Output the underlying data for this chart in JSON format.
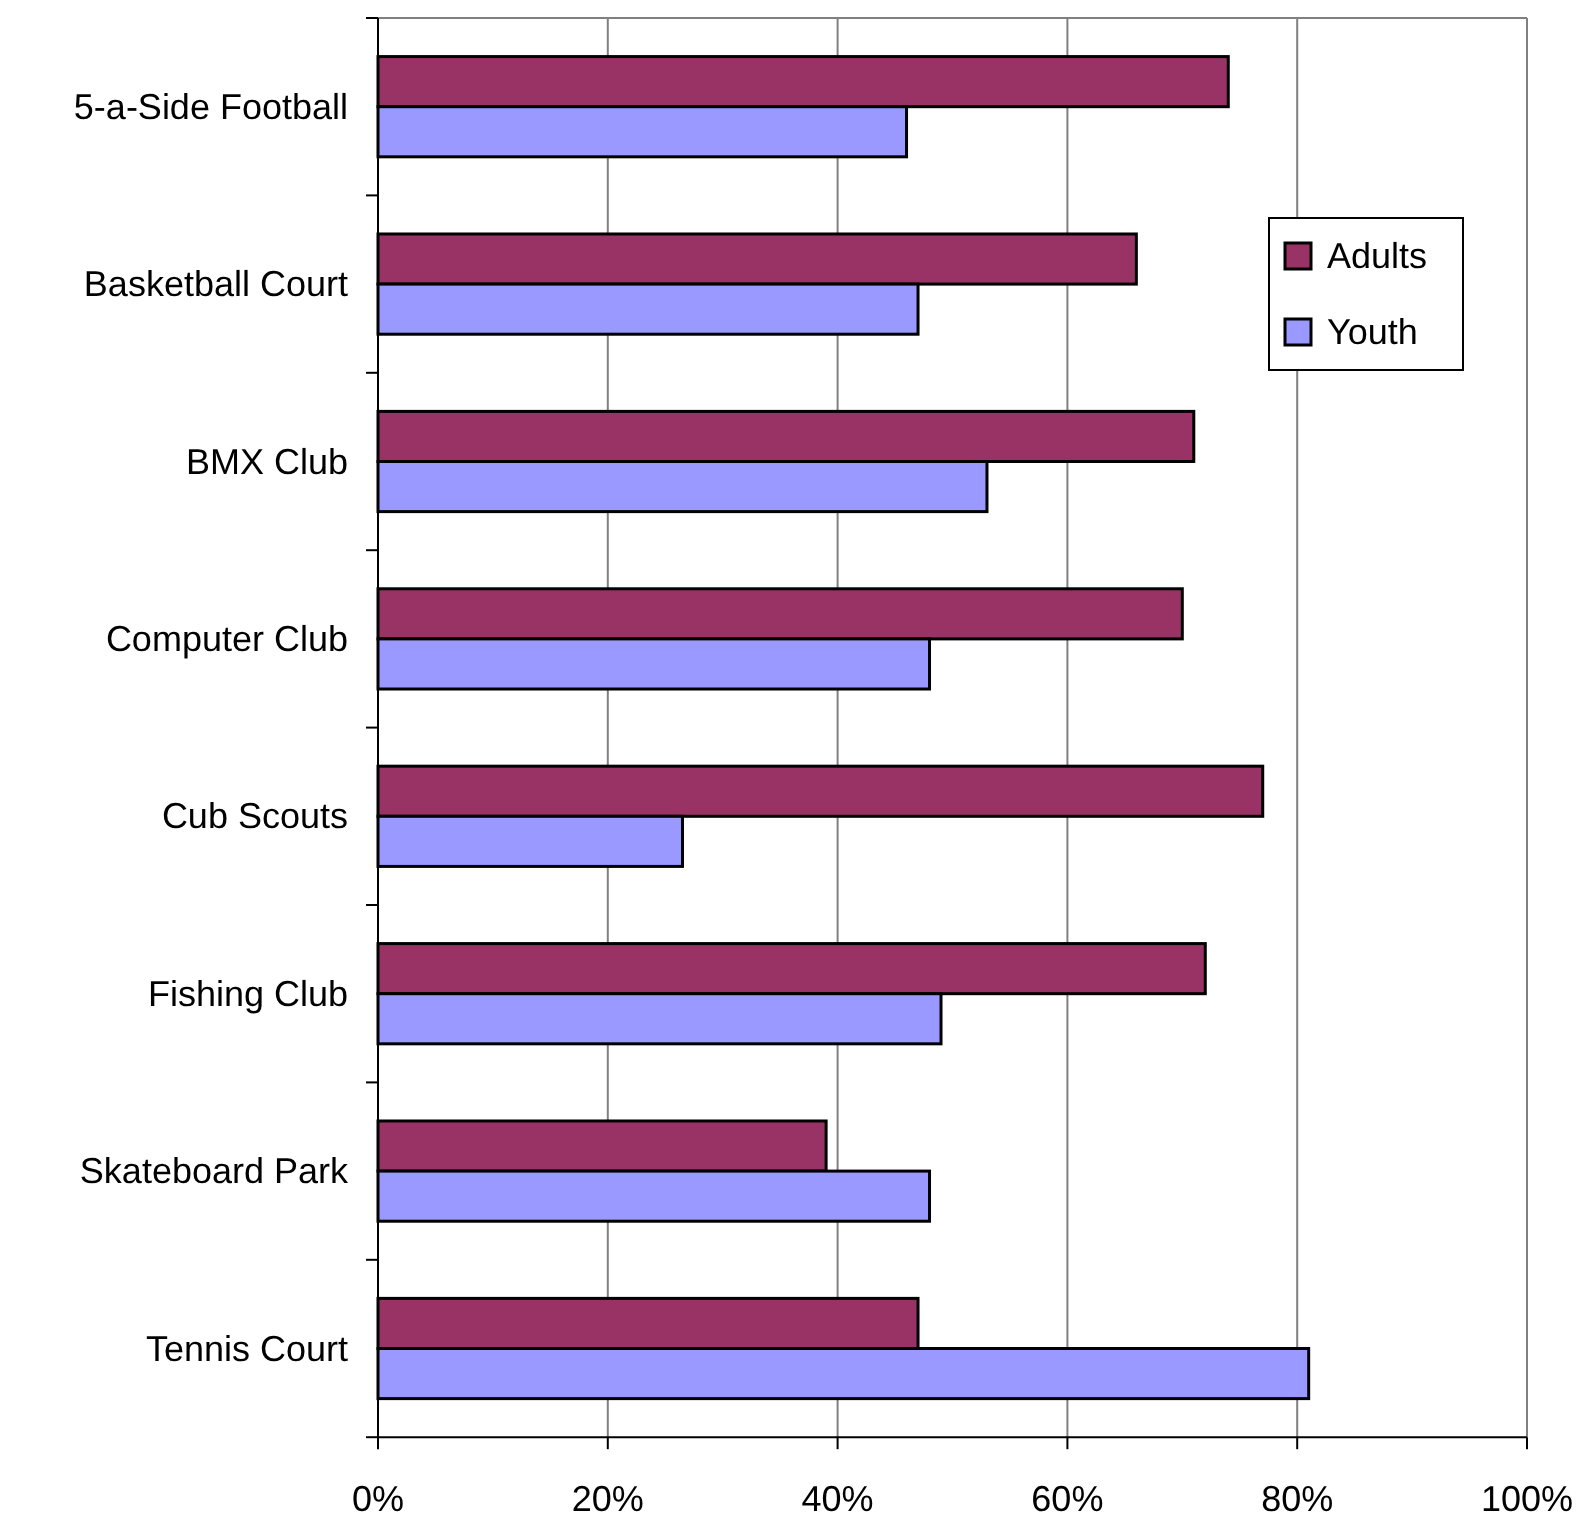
{
  "chart_data": {
    "type": "bar",
    "orientation": "horizontal",
    "categories": [
      "5-a-Side Football",
      "Basketball Court",
      "BMX Club",
      "Computer Club",
      "Cub Scouts",
      "Fishing Club",
      "Skateboard Park",
      "Tennis Court"
    ],
    "series": [
      {
        "name": "Adults",
        "color": "#993366",
        "values": [
          74,
          66,
          71,
          70,
          77,
          72,
          39,
          47
        ]
      },
      {
        "name": "Youth",
        "color": "#9999ff",
        "values": [
          46,
          47,
          53,
          48,
          26.5,
          49,
          48,
          81
        ]
      }
    ],
    "xlim": [
      0,
      100
    ],
    "xticks": [
      {
        "value": 0,
        "label": "0%"
      },
      {
        "value": 20,
        "label": "20%"
      },
      {
        "value": 40,
        "label": "40%"
      },
      {
        "value": 60,
        "label": "60%"
      },
      {
        "value": 80,
        "label": "80%"
      },
      {
        "value": 100,
        "label": "100%"
      }
    ],
    "grid": "x",
    "legend": "top right"
  }
}
